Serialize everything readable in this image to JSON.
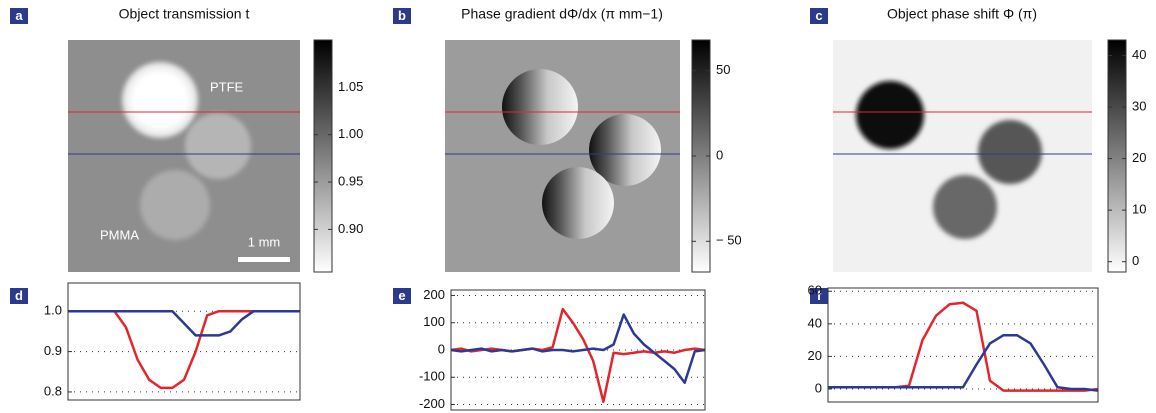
{
  "chart_data": [
    {
      "type": "image",
      "panel": "a",
      "title": "Object transmission t",
      "annotations": [
        "PTFE",
        "PMMA",
        "1 mm"
      ],
      "clim": [
        0.855,
        1.1
      ],
      "cticks": [
        {
          "value": 0.9,
          "label": "0.90"
        },
        {
          "value": 0.95,
          "label": "0.95"
        },
        {
          "value": 1.0,
          "label": "1.00"
        },
        {
          "value": 1.05,
          "label": "1.05"
        }
      ]
    },
    {
      "type": "image",
      "panel": "b",
      "title": "Phase gradient dΦ/dx (π mm−1)",
      "clim": [
        -68,
        68
      ],
      "cticks": [
        {
          "value": -50,
          "label": "− 50"
        },
        0,
        50
      ]
    },
    {
      "type": "image",
      "panel": "c",
      "title": "Object phase shift Φ (π)",
      "clim": [
        -2,
        43
      ],
      "cticks": [
        0,
        10,
        20,
        30,
        40
      ]
    },
    {
      "type": "line",
      "panel": "d",
      "grid": true,
      "xlim": [
        0,
        100
      ],
      "ylim": [
        0.78,
        1.07
      ],
      "yticks": [
        0.8,
        0.9,
        {
          "value": 1,
          "label": "1.0"
        }
      ],
      "x": [
        0,
        5,
        10,
        15,
        20,
        25,
        30,
        35,
        40,
        45,
        50,
        55,
        60,
        65,
        70,
        75,
        80,
        85,
        90,
        95,
        100
      ],
      "series": [
        {
          "color": "#e3262c",
          "values": [
            1,
            1,
            1,
            1,
            1,
            0.96,
            0.88,
            0.83,
            0.81,
            0.81,
            0.83,
            0.9,
            0.99,
            1,
            1,
            1,
            1,
            1,
            1,
            1,
            1
          ]
        },
        {
          "color": "#2c3a96",
          "values": [
            1,
            1,
            1,
            1,
            1,
            1,
            1,
            1,
            1,
            1,
            0.97,
            0.94,
            0.94,
            0.94,
            0.95,
            0.98,
            1,
            1,
            1,
            1,
            1
          ]
        }
      ]
    },
    {
      "type": "line",
      "panel": "e",
      "grid": true,
      "xlim": [
        0,
        100
      ],
      "ylim": [
        -220,
        220
      ],
      "yticks": [
        -200,
        -100,
        0,
        100,
        200
      ],
      "x": [
        0,
        4,
        8,
        12,
        16,
        20,
        24,
        28,
        32,
        36,
        40,
        44,
        48,
        52,
        56,
        60,
        64,
        68,
        72,
        76,
        80,
        84,
        88,
        92,
        96,
        100
      ],
      "series": [
        {
          "color": "#e3262c",
          "values": [
            0,
            5,
            -5,
            0,
            5,
            0,
            -5,
            0,
            5,
            0,
            10,
            150,
            100,
            40,
            -40,
            -190,
            -10,
            -15,
            -10,
            -5,
            -10,
            -5,
            -10,
            0,
            5,
            0
          ]
        },
        {
          "color": "#2c3a96",
          "values": [
            0,
            -5,
            0,
            5,
            -5,
            0,
            -5,
            0,
            5,
            -5,
            0,
            0,
            -5,
            0,
            5,
            0,
            20,
            130,
            60,
            20,
            -10,
            -40,
            -70,
            -120,
            -5,
            0
          ]
        }
      ]
    },
    {
      "type": "line",
      "panel": "f",
      "grid": true,
      "xlim": [
        0,
        100
      ],
      "ylim": [
        -8,
        62
      ],
      "yticks": [
        0,
        20,
        40,
        60
      ],
      "x": [
        0,
        5,
        10,
        15,
        20,
        25,
        30,
        35,
        40,
        45,
        50,
        55,
        60,
        65,
        70,
        75,
        80,
        85,
        90,
        95,
        100
      ],
      "series": [
        {
          "color": "#e3262c",
          "values": [
            1,
            1,
            1,
            1,
            1,
            1,
            2,
            30,
            45,
            52,
            53,
            48,
            5,
            -1,
            -1,
            -1,
            -1,
            -1,
            -1,
            -1,
            0
          ]
        },
        {
          "color": "#2c3a96",
          "values": [
            1,
            1,
            1,
            1,
            1,
            1,
            1,
            1,
            1,
            1,
            1,
            15,
            28,
            33,
            33,
            28,
            15,
            1,
            0,
            0,
            -1
          ]
        }
      ]
    }
  ]
}
